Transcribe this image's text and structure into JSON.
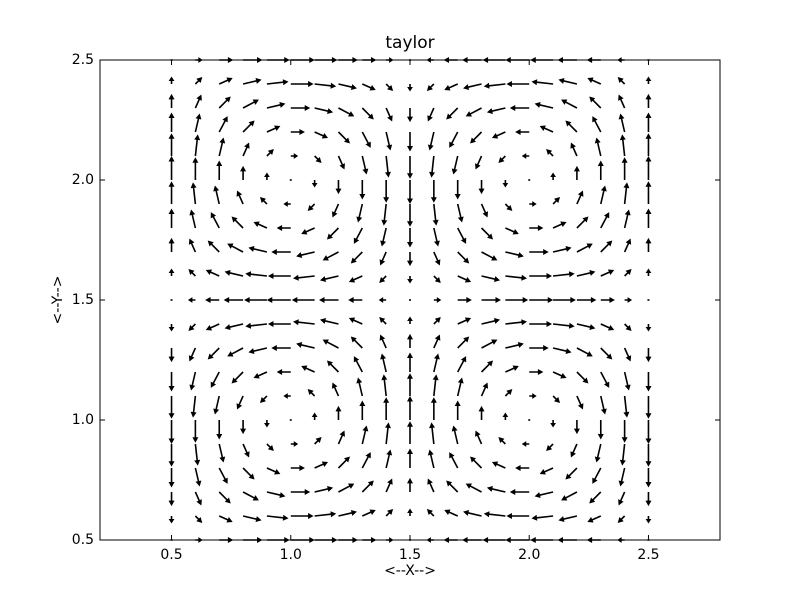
{
  "chart_data": {
    "type": "quiver",
    "title": "taylor",
    "x_label": "<--X-->",
    "y_label": "<--Y-->",
    "color": "#000000",
    "xlim": [
      0.2,
      2.8
    ],
    "ylim": [
      0.5,
      2.5
    ],
    "xticks": [
      0.5,
      {
        "value": 1,
        "label": "1.0"
      },
      1.5,
      {
        "value": 2,
        "label": "2.0"
      },
      2.5
    ],
    "yticks": [
      0.5,
      {
        "value": 1,
        "label": "1.0"
      },
      1.5,
      {
        "value": 2,
        "label": "2.0"
      },
      2.5
    ],
    "x": [
      0.5,
      0.6,
      0.7,
      0.8,
      0.9,
      1.0,
      1.1,
      1.2,
      1.3,
      1.4,
      1.5,
      1.6,
      1.7,
      1.8,
      1.9,
      2.0,
      2.1,
      2.2,
      2.3,
      2.4,
      2.5
    ],
    "y": [
      0.5,
      0.6,
      0.7,
      0.8,
      0.9,
      1.0,
      1.1,
      1.2,
      1.3,
      1.4,
      1.5,
      1.6,
      1.7,
      1.8,
      1.9,
      2.0,
      2.1,
      2.2,
      2.3,
      2.4,
      2.5
    ],
    "u": [
      [
        0,
        0.31,
        0.59,
        0.81,
        0.95,
        1,
        0.95,
        0.81,
        0.59,
        0.31,
        0,
        -0.31,
        -0.59,
        -0.81,
        -0.95,
        -1,
        -0.95,
        -0.81,
        -0.59,
        -0.31,
        0
      ],
      [
        0,
        0.29,
        0.56,
        0.77,
        0.9,
        0.95,
        0.9,
        0.77,
        0.56,
        0.29,
        0,
        -0.29,
        -0.56,
        -0.77,
        -0.9,
        -0.95,
        -0.9,
        -0.77,
        -0.56,
        -0.29,
        0
      ],
      [
        0,
        0.25,
        0.48,
        0.66,
        0.77,
        0.81,
        0.77,
        0.66,
        0.48,
        0.25,
        0,
        -0.25,
        -0.48,
        -0.66,
        -0.77,
        -0.81,
        -0.77,
        -0.66,
        -0.48,
        -0.25,
        0
      ],
      [
        0,
        0.18,
        0.35,
        0.48,
        0.56,
        0.59,
        0.56,
        0.48,
        0.35,
        0.18,
        0,
        -0.18,
        -0.35,
        -0.48,
        -0.56,
        -0.59,
        -0.56,
        -0.48,
        -0.35,
        -0.18,
        0
      ],
      [
        0,
        0.1,
        0.18,
        0.25,
        0.29,
        0.31,
        0.29,
        0.25,
        0.18,
        0.1,
        0,
        -0.1,
        -0.18,
        -0.25,
        -0.29,
        -0.31,
        -0.29,
        -0.25,
        -0.18,
        -0.1,
        0
      ],
      [
        0,
        0,
        0,
        0,
        0,
        0,
        0,
        0,
        0,
        0,
        0,
        0,
        0,
        0,
        0,
        0,
        0,
        0,
        0,
        0,
        0
      ],
      [
        0,
        -0.1,
        -0.18,
        -0.25,
        -0.29,
        -0.31,
        -0.29,
        -0.25,
        -0.18,
        -0.1,
        0,
        0.1,
        0.18,
        0.25,
        0.29,
        0.31,
        0.29,
        0.25,
        0.18,
        0.1,
        0
      ],
      [
        0,
        -0.18,
        -0.35,
        -0.48,
        -0.56,
        -0.59,
        -0.56,
        -0.48,
        -0.35,
        -0.18,
        0,
        0.18,
        0.35,
        0.48,
        0.56,
        0.59,
        0.56,
        0.48,
        0.35,
        0.18,
        0
      ],
      [
        0,
        -0.25,
        -0.48,
        -0.66,
        -0.77,
        -0.81,
        -0.77,
        -0.66,
        -0.48,
        -0.25,
        0,
        0.25,
        0.48,
        0.66,
        0.77,
        0.81,
        0.77,
        0.66,
        0.48,
        0.25,
        0
      ],
      [
        0,
        -0.29,
        -0.56,
        -0.77,
        -0.9,
        -0.95,
        -0.9,
        -0.77,
        -0.56,
        -0.29,
        0,
        0.29,
        0.56,
        0.77,
        0.9,
        0.95,
        0.9,
        0.77,
        0.56,
        0.29,
        0
      ],
      [
        0,
        -0.31,
        -0.59,
        -0.81,
        -0.95,
        -1,
        -0.95,
        -0.81,
        -0.59,
        -0.31,
        0,
        0.31,
        0.59,
        0.81,
        0.95,
        1,
        0.95,
        0.81,
        0.59,
        0.31,
        0
      ],
      [
        0,
        -0.29,
        -0.56,
        -0.77,
        -0.9,
        -0.95,
        -0.9,
        -0.77,
        -0.56,
        -0.29,
        0,
        0.29,
        0.56,
        0.77,
        0.9,
        0.95,
        0.9,
        0.77,
        0.56,
        0.29,
        0
      ],
      [
        0,
        -0.25,
        -0.48,
        -0.66,
        -0.77,
        -0.81,
        -0.77,
        -0.66,
        -0.48,
        -0.25,
        0,
        0.25,
        0.48,
        0.66,
        0.77,
        0.81,
        0.77,
        0.66,
        0.48,
        0.25,
        0
      ],
      [
        0,
        -0.18,
        -0.35,
        -0.48,
        -0.56,
        -0.59,
        -0.56,
        -0.48,
        -0.35,
        -0.18,
        0,
        0.18,
        0.35,
        0.48,
        0.56,
        0.59,
        0.56,
        0.48,
        0.35,
        0.18,
        0
      ],
      [
        0,
        -0.1,
        -0.18,
        -0.25,
        -0.29,
        -0.31,
        -0.29,
        -0.25,
        -0.18,
        -0.1,
        0,
        0.1,
        0.18,
        0.25,
        0.29,
        0.31,
        0.29,
        0.25,
        0.18,
        0.1,
        0
      ],
      [
        0,
        0,
        0,
        0,
        0,
        0,
        0,
        0,
        0,
        0,
        0,
        0,
        0,
        0,
        0,
        0,
        0,
        0,
        0,
        0,
        0
      ],
      [
        0,
        0.1,
        0.18,
        0.25,
        0.29,
        0.31,
        0.29,
        0.25,
        0.18,
        0.1,
        0,
        -0.1,
        -0.18,
        -0.25,
        -0.29,
        -0.31,
        -0.29,
        -0.25,
        -0.18,
        -0.1,
        0
      ],
      [
        0,
        0.18,
        0.35,
        0.48,
        0.56,
        0.59,
        0.56,
        0.48,
        0.35,
        0.18,
        0,
        -0.18,
        -0.35,
        -0.48,
        -0.56,
        -0.59,
        -0.56,
        -0.48,
        -0.35,
        -0.18,
        0
      ],
      [
        0,
        0.25,
        0.48,
        0.66,
        0.77,
        0.81,
        0.77,
        0.66,
        0.48,
        0.25,
        0,
        -0.25,
        -0.48,
        -0.66,
        -0.77,
        -0.81,
        -0.77,
        -0.66,
        -0.48,
        -0.25,
        0
      ],
      [
        0,
        0.29,
        0.56,
        0.77,
        0.9,
        0.95,
        0.9,
        0.77,
        0.56,
        0.29,
        0,
        -0.29,
        -0.56,
        -0.77,
        -0.9,
        -0.95,
        -0.9,
        -0.77,
        -0.56,
        -0.29,
        0
      ],
      [
        0,
        0.31,
        0.59,
        0.81,
        0.95,
        1,
        0.95,
        0.81,
        0.59,
        0.31,
        0,
        -0.31,
        -0.59,
        -0.81,
        -0.95,
        -1,
        -0.95,
        -0.81,
        -0.59,
        -0.31,
        0
      ]
    ],
    "v": [
      [
        0,
        0,
        0,
        0,
        0,
        0,
        0,
        0,
        0,
        0,
        0,
        0,
        0,
        0,
        0,
        0,
        0,
        0,
        0,
        0,
        0
      ],
      [
        -0.31,
        -0.29,
        -0.25,
        -0.18,
        -0.1,
        0,
        0.1,
        0.18,
        0.25,
        0.29,
        0.31,
        0.29,
        0.25,
        0.18,
        0.1,
        0,
        -0.1,
        -0.18,
        -0.25,
        -0.29,
        -0.31
      ],
      [
        -0.59,
        -0.56,
        -0.48,
        -0.35,
        -0.18,
        0,
        0.18,
        0.35,
        0.48,
        0.56,
        0.59,
        0.56,
        0.48,
        0.35,
        0.18,
        0,
        -0.18,
        -0.35,
        -0.48,
        -0.56,
        -0.59
      ],
      [
        -0.81,
        -0.77,
        -0.66,
        -0.48,
        -0.25,
        0,
        0.25,
        0.48,
        0.66,
        0.77,
        0.81,
        0.77,
        0.66,
        0.48,
        0.25,
        0,
        -0.25,
        -0.48,
        -0.66,
        -0.77,
        -0.81
      ],
      [
        -0.95,
        -0.9,
        -0.77,
        -0.56,
        -0.29,
        0,
        0.29,
        0.56,
        0.77,
        0.9,
        0.95,
        0.9,
        0.77,
        0.56,
        0.29,
        0,
        -0.29,
        -0.56,
        -0.77,
        -0.9,
        -0.95
      ],
      [
        -1,
        -0.95,
        -0.81,
        -0.59,
        -0.31,
        0,
        0.31,
        0.59,
        0.81,
        0.95,
        1,
        0.95,
        0.81,
        0.59,
        0.31,
        0,
        -0.31,
        -0.59,
        -0.81,
        -0.95,
        -1
      ],
      [
        -0.95,
        -0.9,
        -0.77,
        -0.56,
        -0.29,
        0,
        0.29,
        0.56,
        0.77,
        0.9,
        0.95,
        0.9,
        0.77,
        0.56,
        0.29,
        0,
        -0.29,
        -0.56,
        -0.77,
        -0.9,
        -0.95
      ],
      [
        -0.81,
        -0.77,
        -0.66,
        -0.48,
        -0.25,
        0,
        0.25,
        0.48,
        0.66,
        0.77,
        0.81,
        0.77,
        0.66,
        0.48,
        0.25,
        0,
        -0.25,
        -0.48,
        -0.66,
        -0.77,
        -0.81
      ],
      [
        -0.59,
        -0.56,
        -0.48,
        -0.35,
        -0.18,
        0,
        0.18,
        0.35,
        0.48,
        0.56,
        0.59,
        0.56,
        0.48,
        0.35,
        0.18,
        0,
        -0.18,
        -0.35,
        -0.48,
        -0.56,
        -0.59
      ],
      [
        -0.31,
        -0.29,
        -0.25,
        -0.18,
        -0.1,
        0,
        0.1,
        0.18,
        0.25,
        0.29,
        0.31,
        0.29,
        0.25,
        0.18,
        0.1,
        0,
        -0.1,
        -0.18,
        -0.25,
        -0.29,
        -0.31
      ],
      [
        0,
        0,
        0,
        0,
        0,
        0,
        0,
        0,
        0,
        0,
        0,
        0,
        0,
        0,
        0,
        0,
        0,
        0,
        0,
        0,
        0
      ],
      [
        0.31,
        0.29,
        0.25,
        0.18,
        0.1,
        0,
        -0.1,
        -0.18,
        -0.25,
        -0.29,
        -0.31,
        -0.29,
        -0.25,
        -0.18,
        -0.1,
        0,
        0.1,
        0.18,
        0.25,
        0.29,
        0.31
      ],
      [
        0.59,
        0.56,
        0.48,
        0.35,
        0.18,
        0,
        -0.18,
        -0.35,
        -0.48,
        -0.56,
        -0.59,
        -0.56,
        -0.48,
        -0.35,
        -0.18,
        0,
        0.18,
        0.35,
        0.48,
        0.56,
        0.59
      ],
      [
        0.81,
        0.77,
        0.66,
        0.48,
        0.25,
        0,
        -0.25,
        -0.48,
        -0.66,
        -0.77,
        -0.81,
        -0.77,
        -0.66,
        -0.48,
        -0.25,
        0,
        0.25,
        0.48,
        0.66,
        0.77,
        0.81
      ],
      [
        0.95,
        0.9,
        0.77,
        0.56,
        0.29,
        0,
        -0.29,
        -0.56,
        -0.77,
        -0.9,
        -0.95,
        -0.9,
        -0.77,
        -0.56,
        -0.29,
        0,
        0.29,
        0.56,
        0.77,
        0.9,
        0.95
      ],
      [
        1,
        0.95,
        0.81,
        0.59,
        0.31,
        0,
        -0.31,
        -0.59,
        -0.81,
        -0.95,
        -1,
        -0.95,
        -0.81,
        -0.59,
        -0.31,
        0,
        0.31,
        0.59,
        0.81,
        0.95,
        1
      ],
      [
        0.95,
        0.9,
        0.77,
        0.56,
        0.29,
        0,
        -0.29,
        -0.56,
        -0.77,
        -0.9,
        -0.95,
        -0.9,
        -0.77,
        -0.56,
        -0.29,
        0,
        0.29,
        0.56,
        0.77,
        0.9,
        0.95
      ],
      [
        0.81,
        0.77,
        0.66,
        0.48,
        0.25,
        0,
        -0.25,
        -0.48,
        -0.66,
        -0.77,
        -0.81,
        -0.77,
        -0.66,
        -0.48,
        -0.25,
        0,
        0.25,
        0.48,
        0.66,
        0.77,
        0.81
      ],
      [
        0.59,
        0.56,
        0.48,
        0.35,
        0.18,
        0,
        -0.18,
        -0.35,
        -0.48,
        -0.56,
        -0.59,
        -0.56,
        -0.48,
        -0.35,
        -0.18,
        0,
        0.18,
        0.35,
        0.48,
        0.56,
        0.59
      ],
      [
        0.31,
        0.29,
        0.25,
        0.18,
        0.1,
        0,
        -0.1,
        -0.18,
        -0.25,
        -0.29,
        -0.31,
        -0.29,
        -0.25,
        -0.18,
        -0.1,
        0,
        0.1,
        0.18,
        0.25,
        0.29,
        0.31
      ],
      [
        0,
        0,
        0,
        0,
        0,
        0,
        0,
        0,
        0,
        0,
        0,
        0,
        0,
        0,
        0,
        0,
        0,
        0,
        0,
        0,
        0
      ]
    ]
  }
}
